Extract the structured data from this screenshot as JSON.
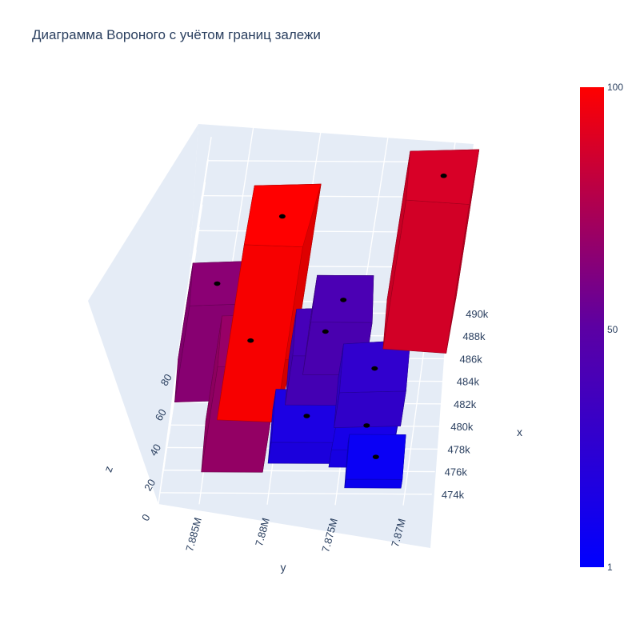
{
  "title": "Диаграмма Вороного с учётом границ залежи",
  "colors": {
    "low": "#0000ff",
    "mid": "#5c00a3",
    "high": "#ff0000",
    "scene_bg": "#e5ecf6",
    "grid": "#ffffff",
    "text": "#2a3f5f",
    "marker": "#000000"
  },
  "chart_data": {
    "type": "3d-voronoi-prism",
    "title": "Диаграмма Вороного с учётом границ залежи",
    "axes": {
      "x": {
        "label": "x",
        "range": [
          473000,
          491000
        ],
        "ticks": [
          "474k",
          "476k",
          "478k",
          "480k",
          "482k",
          "484k",
          "486k",
          "488k",
          "490k"
        ]
      },
      "y": {
        "label": "y",
        "range": [
          7868000,
          7888000
        ],
        "ticks": [
          "7.885M",
          "7.88M",
          "7.875M",
          "7.87M"
        ]
      },
      "z": {
        "label": "z",
        "range": [
          0,
          100
        ],
        "ticks": [
          "0",
          "20",
          "40",
          "60",
          "80"
        ]
      }
    },
    "colorbar": {
      "min": 1,
      "max": 100,
      "ticks": [
        "1",
        "50",
        "100"
      ],
      "colorscale": [
        "#0000ff",
        "#ff0000"
      ]
    },
    "cells": [
      {
        "x": 483000,
        "y": 7882000,
        "z": 100
      },
      {
        "x": 489000,
        "y": 7870500,
        "z": 85
      },
      {
        "x": 478200,
        "y": 7883000,
        "z": 60
      },
      {
        "x": 484000,
        "y": 7886000,
        "z": 55
      },
      {
        "x": 486500,
        "y": 7876500,
        "z": 30
      },
      {
        "x": 484000,
        "y": 7877500,
        "z": 28
      },
      {
        "x": 482000,
        "y": 7873500,
        "z": 20
      },
      {
        "x": 479000,
        "y": 7878000,
        "z": 12
      },
      {
        "x": 478500,
        "y": 7873500,
        "z": 10
      },
      {
        "x": 476500,
        "y": 7872500,
        "z": 5
      }
    ]
  }
}
